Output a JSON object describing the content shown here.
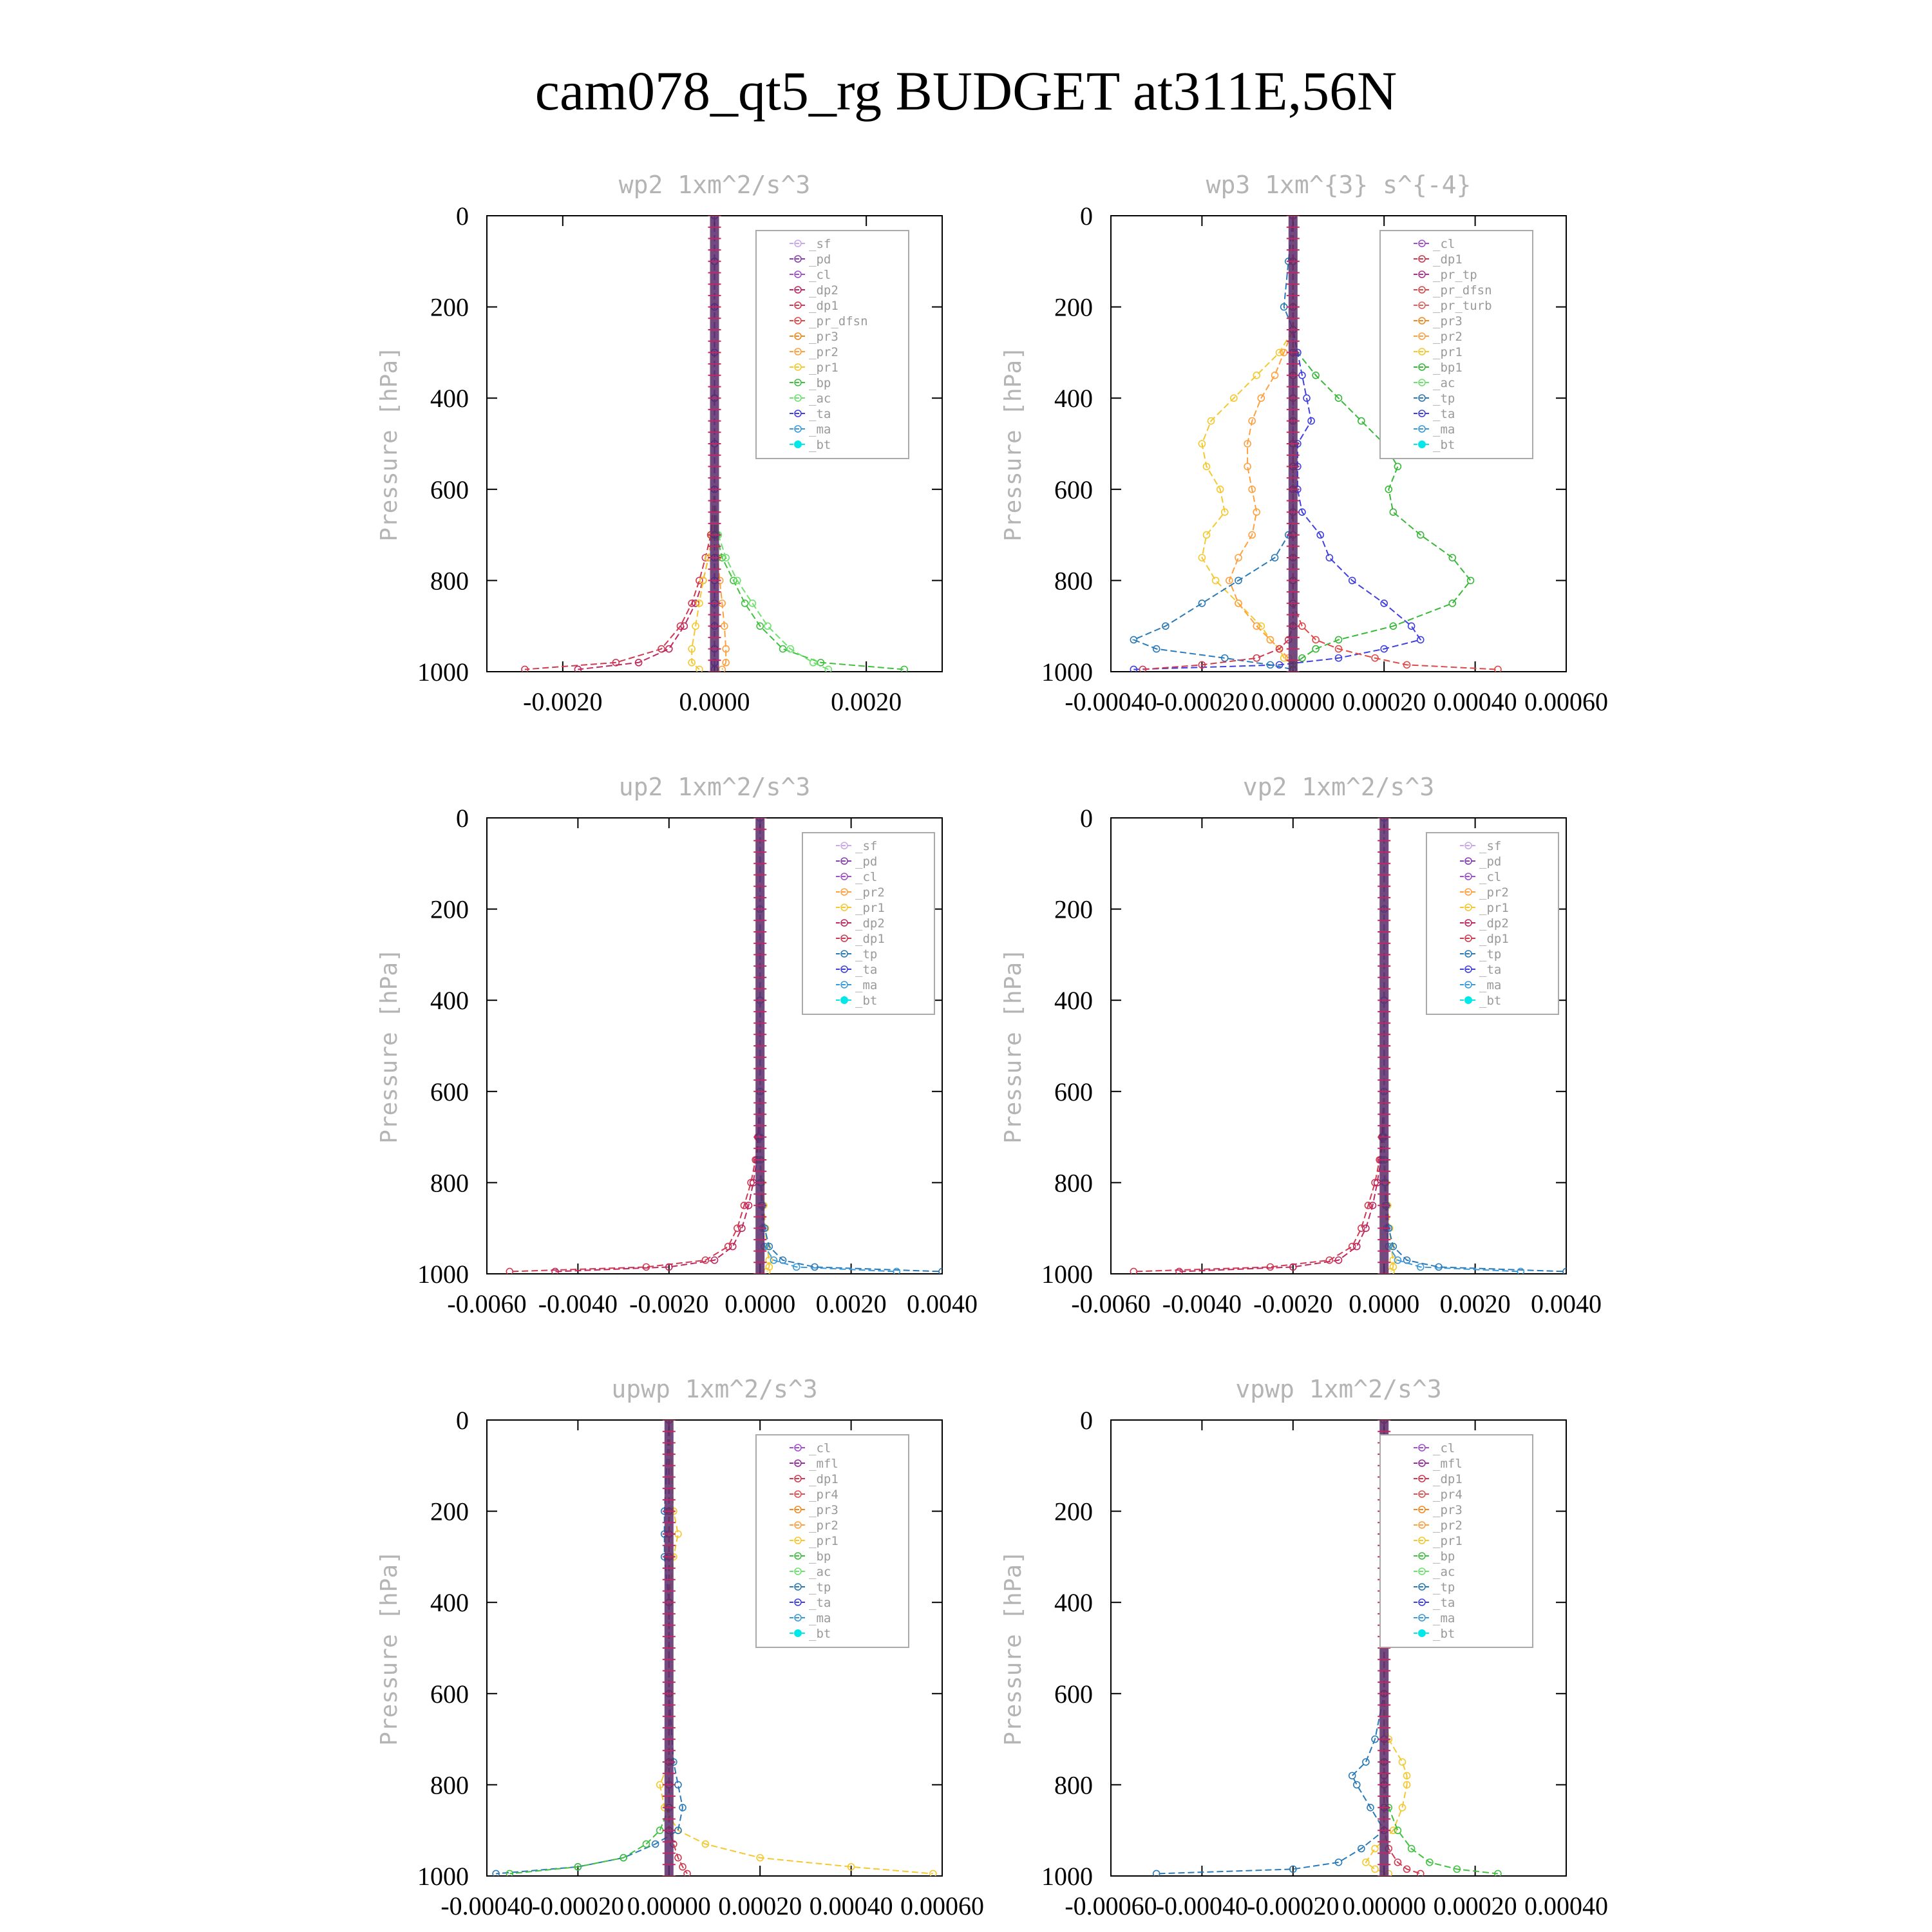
{
  "title": "cam078_qt5_rg  BUDGET at311E,56N",
  "colors": {
    "_sf": "#c8a8e8",
    "_pd": "#8a3fb0",
    "_cl": "#a050c8",
    "_mfl": "#9a2aa0",
    "_dp2": "#c02860",
    "_dp1": "#d03a50",
    "_pr_dfsn": "#e04848",
    "_pr_turb": "#e06060",
    "_pr_tp": "#b03090",
    "_pr4": "#e05050",
    "_pr3": "#f08a20",
    "_pr2": "#ffa040",
    "_pr1": "#f5c830",
    "_bp": "#40c040",
    "_bp1": "#38b838",
    "_ac": "#70e070",
    "_tp": "#2a7ab8",
    "_ta": "#4040e0",
    "_ma": "#3a9ad9",
    "_bt": "#00e8e8"
  },
  "chart_data": [
    {
      "type": "line",
      "title": "wp2   1xm^2/s^3",
      "ylabel": "Pressure [hPa]",
      "xlim": [
        -0.003,
        0.003
      ],
      "ylim": [
        1000,
        0
      ],
      "xticks": [
        "-0.0020",
        "0.0000",
        "0.0020"
      ],
      "xtick_values": [
        -0.002,
        0,
        0.002
      ],
      "yticks": [
        "0",
        "200",
        "400",
        "600",
        "800",
        "1000"
      ],
      "legend": [
        "_sf",
        "_pd",
        "_cl",
        "_dp2",
        "_dp1",
        "_pr_dfsn",
        "_pr3",
        "_pr2",
        "_pr1",
        "_bp",
        "_ac",
        "_ta",
        "_ma",
        "_bt"
      ],
      "pressure": [
        0,
        100,
        200,
        300,
        400,
        500,
        600,
        700,
        750,
        800,
        850,
        900,
        950,
        980,
        995
      ],
      "series": [
        {
          "name": "_dp1",
          "values": [
            0,
            0,
            0,
            0,
            0,
            0,
            0,
            -5e-05,
            -0.00012,
            -0.0002,
            -0.0003,
            -0.00045,
            -0.0007,
            -0.0013,
            -0.0025
          ]
        },
        {
          "name": "_dp2",
          "values": [
            0,
            0,
            0,
            0,
            0,
            0,
            0,
            -3e-05,
            -8e-05,
            -0.00015,
            -0.00025,
            -0.0004,
            -0.0006,
            -0.001,
            -0.0018
          ]
        },
        {
          "name": "_pr1",
          "values": [
            0,
            0,
            0,
            0,
            0,
            0,
            0,
            -3e-05,
            -8e-05,
            -0.00015,
            -0.0002,
            -0.00025,
            -0.0003,
            -0.0003,
            -0.0002
          ]
        },
        {
          "name": "_pr2",
          "values": [
            0,
            0,
            0,
            0,
            0,
            0,
            0,
            2e-05,
            4e-05,
            7e-05,
            0.0001,
            0.00013,
            0.00015,
            0.00015,
            0.0001
          ]
        },
        {
          "name": "_bp",
          "values": [
            0,
            0,
            0,
            0,
            0,
            0,
            0,
            3e-05,
            0.0001,
            0.00025,
            0.0004,
            0.0006,
            0.0009,
            0.0014,
            0.0025
          ]
        },
        {
          "name": "_ac",
          "values": [
            0,
            0,
            0,
            0,
            0,
            0,
            0,
            5e-05,
            0.00015,
            0.0003,
            0.0005,
            0.0007,
            0.001,
            0.0013,
            0.0015
          ]
        },
        {
          "name": "_ta",
          "values": [
            0,
            0,
            0,
            0,
            0,
            0,
            0,
            0,
            0,
            0,
            0,
            0,
            0,
            0,
            0
          ]
        }
      ]
    },
    {
      "type": "line",
      "title": "wp3   1xm^{3} s^{-4}",
      "ylabel": "Pressure [hPa]",
      "xlim": [
        -0.0004,
        0.0006
      ],
      "ylim": [
        1000,
        0
      ],
      "xticks": [
        "-0.00040",
        "-0.00020",
        "0.00000",
        "0.00020",
        "0.00040",
        "0.00060"
      ],
      "xtick_values": [
        -0.0004,
        -0.0002,
        0,
        0.0002,
        0.0004,
        0.0006
      ],
      "yticks": [
        "0",
        "200",
        "400",
        "600",
        "800",
        "1000"
      ],
      "legend": [
        "_cl",
        "_dp1",
        "_pr_tp",
        "_pr_dfsn",
        "_pr_turb",
        "_pr3",
        "_pr2",
        "_pr1",
        "_bp1",
        "_ac",
        "_tp",
        "_ta",
        "_ma",
        "_bt"
      ],
      "pressure": [
        0,
        100,
        200,
        250,
        300,
        350,
        400,
        450,
        500,
        550,
        600,
        650,
        700,
        750,
        800,
        850,
        900,
        930,
        950,
        970,
        985,
        995
      ],
      "series": [
        {
          "name": "_pr1",
          "values": [
            0,
            0,
            0,
            0,
            -3e-05,
            -8e-05,
            -0.00013,
            -0.00018,
            -0.0002,
            -0.00019,
            -0.00016,
            -0.00015,
            -0.00019,
            -0.0002,
            -0.00017,
            -0.00012,
            -7e-05,
            -5e-05,
            -3e-05,
            -2e-05,
            0,
            0
          ]
        },
        {
          "name": "_pr2",
          "values": [
            0,
            0,
            0,
            0,
            -2e-05,
            -4e-05,
            -7e-05,
            -9e-05,
            -0.0001,
            -0.0001,
            -9e-05,
            -8e-05,
            -9e-05,
            -0.00012,
            -0.00014,
            -0.00012,
            -8e-05,
            -5e-05,
            -3e-05,
            -1e-05,
            0,
            0
          ]
        },
        {
          "name": "_bp1",
          "values": [
            0,
            0,
            0,
            0,
            1e-05,
            5e-05,
            0.0001,
            0.00015,
            0.0002,
            0.00023,
            0.00021,
            0.00022,
            0.00028,
            0.00035,
            0.00039,
            0.00035,
            0.00022,
            0.0001,
            5e-05,
            2e-05,
            0,
            0
          ]
        },
        {
          "name": "_ta",
          "values": [
            0,
            0,
            0,
            0,
            1e-05,
            2e-05,
            3e-05,
            4e-05,
            1e-05,
            1e-05,
            1e-05,
            2e-05,
            6e-05,
            8e-05,
            0.00013,
            0.0002,
            0.00026,
            0.00028,
            0.0002,
            0.0001,
            -3e-05,
            -0.00035
          ]
        },
        {
          "name": "_tp",
          "values": [
            0,
            -1e-05,
            -2e-05,
            0,
            0,
            0,
            0,
            0,
            0,
            0,
            0,
            0,
            -1e-05,
            -4e-05,
            -0.00012,
            -0.0002,
            -0.00028,
            -0.00035,
            -0.0003,
            -0.00015,
            -5e-05,
            0
          ]
        },
        {
          "name": "_pr_dfsn",
          "values": [
            0,
            0,
            0,
            0,
            0,
            0,
            0,
            0,
            0,
            0,
            0,
            0,
            0,
            0,
            0,
            0,
            2e-05,
            5e-05,
            0.0001,
            0.00018,
            0.00025,
            0.00045
          ]
        },
        {
          "name": "_dp1",
          "values": [
            0,
            0,
            0,
            0,
            0,
            0,
            0,
            0,
            0,
            0,
            0,
            0,
            0,
            0,
            0,
            0,
            0,
            -1e-05,
            -3e-05,
            -8e-05,
            -0.0002,
            -0.00033
          ]
        }
      ]
    },
    {
      "type": "line",
      "title": "up2   1xm^2/s^3",
      "ylabel": "Pressure [hPa]",
      "xlim": [
        -0.006,
        0.004
      ],
      "ylim": [
        1000,
        0
      ],
      "xticks": [
        "-0.0060",
        "-0.0040",
        "-0.0020",
        "0.0000",
        "0.0020",
        "0.0040"
      ],
      "xtick_values": [
        -0.006,
        -0.004,
        -0.002,
        0,
        0.002,
        0.004
      ],
      "yticks": [
        "0",
        "200",
        "400",
        "600",
        "800",
        "1000"
      ],
      "legend": [
        "_sf",
        "_pd",
        "_cl",
        "_pr2",
        "_pr1",
        "_dp2",
        "_dp1",
        "_tp",
        "_ta",
        "_ma",
        "_bt"
      ],
      "pressure": [
        0,
        200,
        400,
        600,
        700,
        750,
        800,
        850,
        900,
        940,
        970,
        985,
        995
      ],
      "series": [
        {
          "name": "_dp1",
          "values": [
            0,
            0,
            0,
            0,
            -5e-05,
            -0.0001,
            -0.0002,
            -0.00035,
            -0.0005,
            -0.0007,
            -0.0012,
            -0.0025,
            -0.0055
          ]
        },
        {
          "name": "_dp2",
          "values": [
            0,
            0,
            0,
            0,
            -3e-05,
            -7e-05,
            -0.00015,
            -0.00025,
            -0.0004,
            -0.0006,
            -0.001,
            -0.002,
            -0.0045
          ]
        },
        {
          "name": "_pr1",
          "values": [
            0,
            0,
            0,
            0,
            0,
            2e-05,
            4e-05,
            8e-05,
            0.00012,
            0.00015,
            0.0002,
            0.0002,
            0.00015
          ]
        },
        {
          "name": "_tp",
          "values": [
            0,
            0,
            0,
            0,
            0,
            0,
            2e-05,
            5e-05,
            0.0001,
            0.0002,
            0.0005,
            0.0012,
            0.004
          ]
        },
        {
          "name": "_ma",
          "values": [
            0,
            0,
            0,
            0,
            0,
            0,
            1e-05,
            3e-05,
            6e-05,
            0.0001,
            0.0003,
            0.0008,
            0.003
          ]
        }
      ]
    },
    {
      "type": "line",
      "title": "vp2   1xm^2/s^3",
      "ylabel": "Pressure [hPa]",
      "xlim": [
        -0.006,
        0.004
      ],
      "ylim": [
        1000,
        0
      ],
      "xticks": [
        "-0.0060",
        "-0.0040",
        "-0.0020",
        "0.0000",
        "0.0020",
        "0.0040"
      ],
      "xtick_values": [
        -0.006,
        -0.004,
        -0.002,
        0,
        0.002,
        0.004
      ],
      "yticks": [
        "0",
        "200",
        "400",
        "600",
        "800",
        "1000"
      ],
      "legend": [
        "_sf",
        "_pd",
        "_cl",
        "_pr2",
        "_pr1",
        "_dp2",
        "_dp1",
        "_tp",
        "_ta",
        "_ma",
        "_bt"
      ],
      "pressure": [
        0,
        200,
        400,
        600,
        700,
        750,
        800,
        850,
        900,
        940,
        970,
        985,
        995
      ],
      "series": [
        {
          "name": "_dp1",
          "values": [
            0,
            0,
            0,
            0,
            -5e-05,
            -0.0001,
            -0.0002,
            -0.00035,
            -0.0005,
            -0.0007,
            -0.0012,
            -0.0025,
            -0.0055
          ]
        },
        {
          "name": "_dp2",
          "values": [
            0,
            0,
            0,
            0,
            -3e-05,
            -7e-05,
            -0.00015,
            -0.00025,
            -0.0004,
            -0.0006,
            -0.001,
            -0.002,
            -0.0045
          ]
        },
        {
          "name": "_pr1",
          "values": [
            0,
            0,
            0,
            0,
            0,
            2e-05,
            4e-05,
            8e-05,
            0.00012,
            0.00015,
            0.0002,
            0.0002,
            0.00015
          ]
        },
        {
          "name": "_tp",
          "values": [
            0,
            0,
            0,
            0,
            0,
            0,
            2e-05,
            5e-05,
            0.0001,
            0.0002,
            0.0005,
            0.0012,
            0.004
          ]
        },
        {
          "name": "_ma",
          "values": [
            0,
            0,
            0,
            0,
            0,
            0,
            1e-05,
            3e-05,
            6e-05,
            0.0001,
            0.0003,
            0.0008,
            0.003
          ]
        }
      ]
    },
    {
      "type": "line",
      "title": "upwp   1xm^2/s^3",
      "ylabel": "Pressure [hPa]",
      "xlim": [
        -0.0004,
        0.0006
      ],
      "ylim": [
        1000,
        0
      ],
      "xticks": [
        "-0.00040",
        "-0.00020",
        "0.00000",
        "0.00020",
        "0.00040",
        "0.00060"
      ],
      "xtick_values": [
        -0.0004,
        -0.0002,
        0,
        0.0002,
        0.0004,
        0.0006
      ],
      "yticks": [
        "0",
        "200",
        "400",
        "600",
        "800",
        "1000"
      ],
      "legend": [
        "_cl",
        "_mfl",
        "_dp1",
        "_pr4",
        "_pr3",
        "_pr2",
        "_pr1",
        "_bp",
        "_ac",
        "_tp",
        "_ta",
        "_ma",
        "_bt"
      ],
      "pressure": [
        0,
        200,
        250,
        300,
        400,
        600,
        750,
        800,
        850,
        900,
        930,
        960,
        980,
        995
      ],
      "series": [
        {
          "name": "_pr1",
          "values": [
            0,
            1e-05,
            2e-05,
            1e-05,
            0,
            0,
            0,
            -2e-05,
            -1e-05,
            2e-05,
            8e-05,
            0.0002,
            0.0004,
            0.00058
          ]
        },
        {
          "name": "_tp",
          "values": [
            0,
            -1e-05,
            -1e-05,
            -1e-05,
            0,
            0,
            1e-05,
            2e-05,
            3e-05,
            2e-05,
            -3e-05,
            -0.0001,
            -0.0002,
            -0.00038
          ]
        },
        {
          "name": "_bp",
          "values": [
            0,
            0,
            0,
            0,
            0,
            0,
            0,
            0,
            0,
            -2e-05,
            -5e-05,
            -0.0001,
            -0.0002,
            -0.00035
          ]
        },
        {
          "name": "_dp1",
          "values": [
            0,
            0,
            0,
            0,
            0,
            0,
            0,
            0,
            0,
            0,
            1e-05,
            2e-05,
            3e-05,
            4e-05
          ]
        }
      ]
    },
    {
      "type": "line",
      "title": "vpwp   1xm^2/s^3",
      "ylabel": "Pressure [hPa]",
      "xlim": [
        -0.0006,
        0.0004
      ],
      "ylim": [
        1000,
        0
      ],
      "xticks": [
        "-0.00060",
        "-0.00040",
        "-0.00020",
        "0.00000",
        "0.00020",
        "0.00040"
      ],
      "xtick_values": [
        -0.0006,
        -0.0004,
        -0.0002,
        0,
        0.0002,
        0.0004
      ],
      "yticks": [
        "0",
        "200",
        "400",
        "600",
        "800",
        "1000"
      ],
      "legend": [
        "_cl",
        "_mfl",
        "_dp1",
        "_pr4",
        "_pr3",
        "_pr2",
        "_pr1",
        "_bp",
        "_ac",
        "_tp",
        "_ta",
        "_ma",
        "_bt"
      ],
      "pressure": [
        0,
        600,
        700,
        750,
        780,
        800,
        850,
        900,
        940,
        970,
        985,
        995
      ],
      "series": [
        {
          "name": "_pr1",
          "values": [
            0,
            0,
            1e-05,
            4e-05,
            5e-05,
            5e-05,
            4e-05,
            2e-05,
            -2e-05,
            -4e-05,
            -2e-05,
            1e-05
          ]
        },
        {
          "name": "_tp",
          "values": [
            0,
            0,
            -2e-05,
            -4e-05,
            -7e-05,
            -6e-05,
            -3e-05,
            0,
            -5e-05,
            -0.0001,
            -0.0002,
            -0.0005
          ]
        },
        {
          "name": "_bp",
          "values": [
            0,
            0,
            0,
            0,
            0,
            0,
            1e-05,
            3e-05,
            6e-05,
            0.0001,
            0.00016,
            0.00025
          ]
        },
        {
          "name": "_dp1",
          "values": [
            0,
            0,
            0,
            0,
            0,
            0,
            0,
            0,
            1e-05,
            3e-05,
            5e-05,
            8e-05
          ]
        }
      ]
    }
  ]
}
